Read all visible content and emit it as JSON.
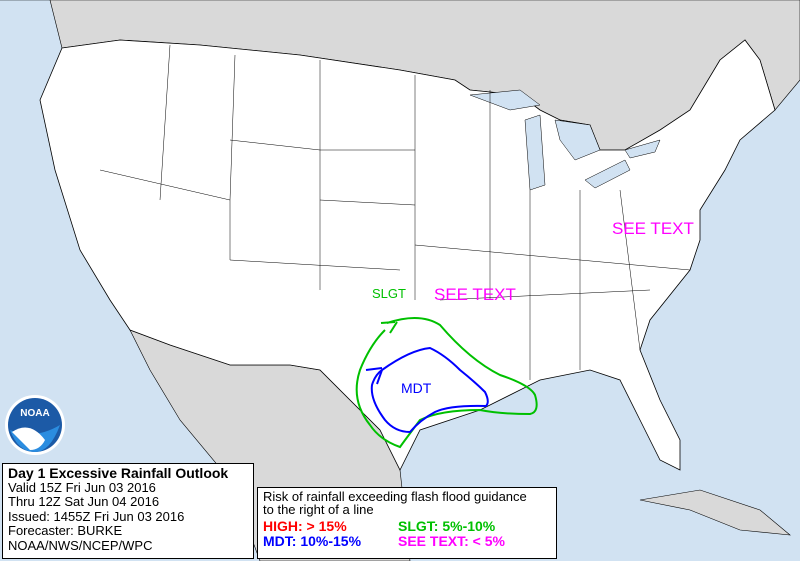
{
  "info": {
    "title": "Day 1 Excessive Rainfall Outlook",
    "valid": "Valid 15Z Fri Jun 03 2016",
    "thru": "Thru 12Z Sat Jun 04 2016",
    "issued": "Issued: 1455Z Fri Jun 03 2016",
    "forecaster": "Forecaster: BURKE",
    "agency": "NOAA/NWS/NCEP/WPC"
  },
  "legend": {
    "caption1": "Risk of rainfall exceeding flash flood guidance",
    "caption2": "to the right of a line",
    "high": "HIGH: > 15%",
    "slgt": "SLGT: 5%-10%",
    "mdt": "MDT: 10%-15%",
    "see_text": "SEE TEXT: < 5%"
  },
  "map_labels": {
    "slgt": "SLGT",
    "mdt": "MDT",
    "see_text_1": "SEE TEXT",
    "see_text_2": "SEE TEXT"
  },
  "logo": "NOAA",
  "colors": {
    "high": "#ff0000",
    "slgt": "#00c000",
    "mdt": "#0000ff",
    "see_text": "#ff00ff",
    "water": "#d1e2f2",
    "land_foreign": "#d9d9d9",
    "land_us": "#ffffff"
  }
}
